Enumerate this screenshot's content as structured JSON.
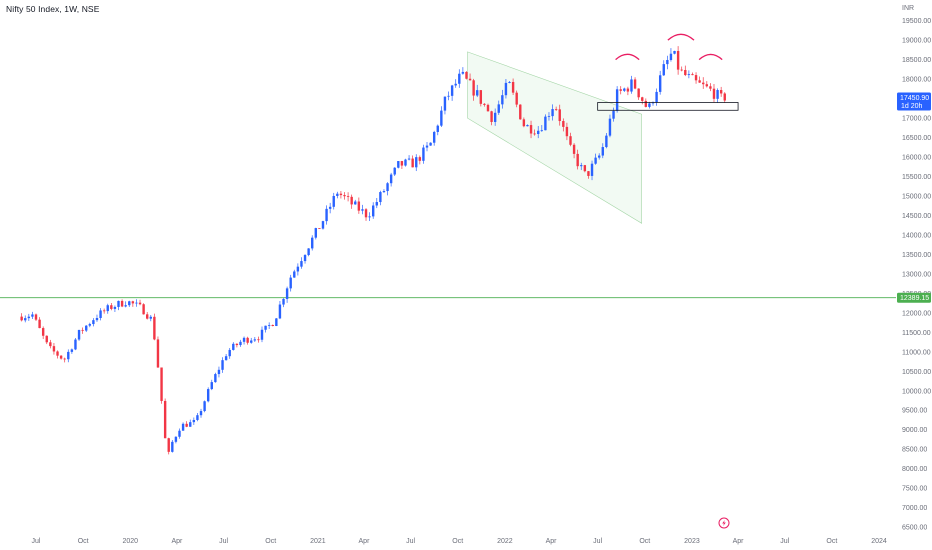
{
  "header": {
    "title": "Nifty 50 Index, 1W, NSE"
  },
  "colors": {
    "up": "#2962ff",
    "down": "#f23645",
    "support_line": "#4caf50",
    "channel_fill": "#e8f5e9",
    "arc": "#e91e63",
    "price_badge": "#2962ff",
    "level_badge": "#4caf50",
    "axis_text": "#6a6d78"
  },
  "chart_data": {
    "type": "candlestick",
    "title": "Nifty 50 Index, 1W, NSE",
    "currency_label": "INR",
    "x_ticks": [
      "Jul",
      "Oct",
      "2020",
      "Apr",
      "Jul",
      "Oct",
      "2021",
      "Apr",
      "Jul",
      "Oct",
      "2022",
      "Apr",
      "Jul",
      "Oct",
      "2023",
      "Apr",
      "Jul",
      "Oct",
      "2024"
    ],
    "y_ticks": [
      "19500.00",
      "19000.00",
      "18500.00",
      "18000.00",
      "17500.00",
      "17000.00",
      "16500.00",
      "16000.00",
      "15500.00",
      "15000.00",
      "14500.00",
      "14000.00",
      "13500.00",
      "13000.00",
      "12500.00",
      "12000.00",
      "11500.00",
      "11000.00",
      "10500.00",
      "10000.00",
      "9500.00",
      "9000.00",
      "8500.00",
      "8000.00",
      "7500.00",
      "7000.00",
      "6500.00"
    ],
    "ylim": [
      6400,
      19800
    ],
    "last_price": {
      "value": "17450.90",
      "countdown": "1d 20h"
    },
    "horizontal_level": {
      "value": "12389.15"
    },
    "path": [
      [
        "2019-06-01",
        11900
      ],
      [
        "2019-07-01",
        11950
      ],
      [
        "2019-08-01",
        11100
      ],
      [
        "2019-09-01",
        10800
      ],
      [
        "2019-10-01",
        11500
      ],
      [
        "2019-11-01",
        11900
      ],
      [
        "2019-12-01",
        12150
      ],
      [
        "2020-01-01",
        12300
      ],
      [
        "2020-02-01",
        12100
      ],
      [
        "2020-02-20",
        11800
      ],
      [
        "2020-03-05",
        10300
      ],
      [
        "2020-03-20",
        8200
      ],
      [
        "2020-03-27",
        8600
      ],
      [
        "2020-04-15",
        9100
      ],
      [
        "2020-05-15",
        9200
      ],
      [
        "2020-06-15",
        10200
      ],
      [
        "2020-07-15",
        11000
      ],
      [
        "2020-08-15",
        11300
      ],
      [
        "2020-09-15",
        11400
      ],
      [
        "2020-10-15",
        11800
      ],
      [
        "2020-11-15",
        12900
      ],
      [
        "2020-12-15",
        13600
      ],
      [
        "2021-01-15",
        14300
      ],
      [
        "2021-02-15",
        15100
      ],
      [
        "2021-03-15",
        14800
      ],
      [
        "2021-04-15",
        14500
      ],
      [
        "2021-05-15",
        15100
      ],
      [
        "2021-06-15",
        15800
      ],
      [
        "2021-07-15",
        15850
      ],
      [
        "2021-08-15",
        16300
      ],
      [
        "2021-09-15",
        17500
      ],
      [
        "2021-10-15",
        18100
      ],
      [
        "2021-11-15",
        17600
      ],
      [
        "2021-12-15",
        17000
      ],
      [
        "2022-01-15",
        17900
      ],
      [
        "2022-02-15",
        16800
      ],
      [
        "2022-03-15",
        16700
      ],
      [
        "2022-04-15",
        17400
      ],
      [
        "2022-05-15",
        16200
      ],
      [
        "2022-06-15",
        15500
      ],
      [
        "2022-07-15",
        16100
      ],
      [
        "2022-08-15",
        17600
      ],
      [
        "2022-09-15",
        17900
      ],
      [
        "2022-10-15",
        17200
      ],
      [
        "2022-11-15",
        18300
      ],
      [
        "2022-12-01",
        18700
      ],
      [
        "2022-12-15",
        18200
      ],
      [
        "2023-01-15",
        17900
      ],
      [
        "2023-02-15",
        17700
      ],
      [
        "2023-03-10",
        17450
      ]
    ],
    "annotations": {
      "channel": {
        "upper": [
          [
            "2021-10-20",
            18700
          ],
          [
            "2022-09-25",
            17100
          ]
        ],
        "lower": [
          [
            "2021-10-20",
            17000
          ],
          [
            "2022-09-25",
            14300
          ]
        ]
      },
      "support_box": {
        "from": "2022-07-01",
        "to": "2023-04-01",
        "low": 17200,
        "high": 17400
      },
      "arcs": [
        {
          "from": "2022-08-05",
          "to": "2022-09-20",
          "level": 18500
        },
        {
          "from": "2022-11-15",
          "to": "2023-01-05",
          "level": 19000
        },
        {
          "from": "2023-01-15",
          "to": "2023-03-01",
          "level": 18500
        }
      ]
    }
  }
}
